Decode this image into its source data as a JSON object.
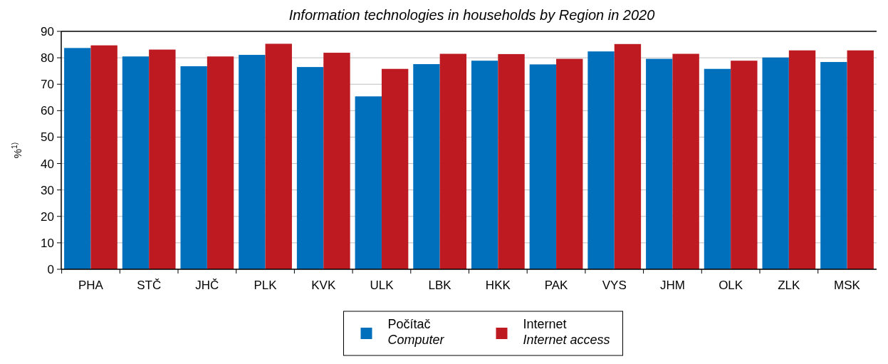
{
  "chart_data": {
    "type": "bar",
    "title": "Information technologies in households by Region in 2020",
    "ylabel": "%$^{1)}$",
    "categories": [
      "PHA",
      "STČ",
      "JHČ",
      "PLK",
      "KVK",
      "ULK",
      "LBK",
      "HKK",
      "PAK",
      "VYS",
      "JHM",
      "OLK",
      "ZLK",
      "MSK"
    ],
    "series": [
      {
        "name": "Počítač\nComputer",
        "color": "#0070bc",
        "values": [
          83.7,
          80.5,
          76.8,
          81.1,
          76.5,
          65.4,
          77.6,
          78.9,
          77.5,
          82.4,
          79.6,
          75.8,
          80.1,
          78.4
        ]
      },
      {
        "name": "Internet\nInternet access",
        "color": "#bd1b21",
        "values": [
          84.7,
          83.1,
          80.5,
          85.3,
          81.9,
          75.8,
          81.5,
          81.4,
          79.6,
          85.2,
          81.5,
          78.9,
          82.8,
          82.8
        ]
      }
    ],
    "ylim": [
      0,
      90
    ],
    "yticks": [
      0,
      10,
      20,
      30,
      40,
      50,
      60,
      70,
      80,
      90
    ],
    "grid": "y",
    "legend": "bottom"
  }
}
